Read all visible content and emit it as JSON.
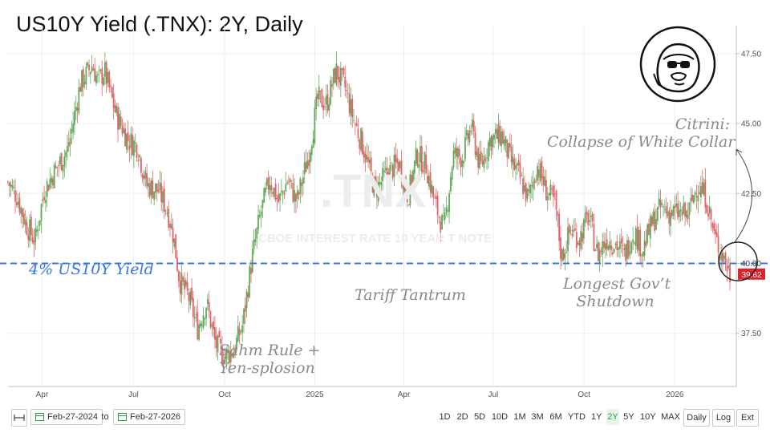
{
  "title": "US10Y Yield (.TNX): 2Y, Daily",
  "watermark": {
    "symbol": ".TNX",
    "name": "CBOE INTEREST RATE 10 YEAR T NOTE"
  },
  "annotations": {
    "citrini_line1": "Citrini:",
    "citrini_line2": "Collapse of White Collar",
    "four_pct": "4% US10Y Yield",
    "tariff": "Tariff Tantrum",
    "shutdown_line1": "Longest Gov’t",
    "shutdown_line2": "Shutdown",
    "sahm_line1": "Sahm Rule +",
    "sahm_line2": "Yen-splosion"
  },
  "price_label": "39.62",
  "toolbar": {
    "from_date": "Feb-27-2024",
    "to_label": "to",
    "to_date": "Feb-27-2026",
    "ranges": [
      "1D",
      "2D",
      "5D",
      "10D",
      "1M",
      "3M",
      "6M",
      "YTD",
      "1Y",
      "2Y",
      "5Y",
      "10Y",
      "MAX"
    ],
    "active_range": "2Y",
    "interval": "Daily",
    "scale": "Log",
    "ext": "Ext"
  },
  "colors": {
    "up": "#62a95b",
    "down": "#e0646a",
    "reference_line": "#3a78d8",
    "price_badge": "#d9232d",
    "annotation": "#8a8a8a"
  },
  "chart_data": {
    "type": "candlestick",
    "title": "US10Y Yield (.TNX): 2Y, Daily",
    "x_tick_labels": [
      "Apr",
      "Jul",
      "Oct",
      "2025",
      "Apr",
      "Jul",
      "Oct",
      "2026"
    ],
    "y_ticks": [
      37.5,
      40.0,
      42.5,
      45.0,
      47.5
    ],
    "y_tick_labels": [
      "37.50",
      "40.00",
      "42.50",
      "45.00",
      "47.50"
    ],
    "ylim": [
      35.6,
      48.5
    ],
    "reference_line": {
      "value": 40.0,
      "label": "4% US10Y Yield",
      "style": "dashed"
    },
    "last_value": 39.62,
    "grid": true,
    "path_months_from_start": [
      0,
      0.3,
      0.6,
      0.9,
      1.2,
      1.6,
      2.0,
      2.4,
      2.8,
      3.0,
      3.2,
      3.6,
      4.0,
      4.3,
      4.6,
      5.0,
      5.3,
      5.5,
      5.7,
      6.0,
      6.3,
      6.6,
      6.9,
      7.2,
      7.5,
      7.8,
      8.1,
      8.4,
      8.7,
      9.0,
      9.3,
      9.6,
      10.0,
      10.3,
      10.6,
      10.9,
      11.2,
      11.5,
      11.8,
      12.2,
      12.6,
      13.0,
      13.3,
      13.6,
      13.9,
      14.2,
      14.5,
      14.8,
      15.1,
      15.4,
      15.7,
      16.0,
      16.4,
      16.7,
      17.0,
      17.3,
      17.6,
      17.9,
      18.2,
      18.4,
      18.7,
      19.0,
      19.3,
      19.6,
      19.9,
      20.2,
      20.5,
      20.8,
      21.1,
      21.4,
      21.7,
      22.0,
      22.3,
      22.6,
      22.9,
      23.2,
      23.5,
      23.8,
      24.0
    ],
    "path_values": [
      42.9,
      42.4,
      41.4,
      40.8,
      42.6,
      43.4,
      44.1,
      46.4,
      47.1,
      46.5,
      46.9,
      45.3,
      44.4,
      44.2,
      42.8,
      42.6,
      41.9,
      41.0,
      39.4,
      38.8,
      37.7,
      38.6,
      37.1,
      36.7,
      36.9,
      37.8,
      40.1,
      41.8,
      43.0,
      42.2,
      43.0,
      42.2,
      43.9,
      45.9,
      45.7,
      46.9,
      46.3,
      45.1,
      44.2,
      42.6,
      43.2,
      43.6,
      42.4,
      43.9,
      43.5,
      42.1,
      41.2,
      43.9,
      43.8,
      44.9,
      43.4,
      44.4,
      44.6,
      43.7,
      43.1,
      42.3,
      43.5,
      42.6,
      42.1,
      40.2,
      41.2,
      40.9,
      41.7,
      40.3,
      40.9,
      40.7,
      40.3,
      41.2,
      40.5,
      41.4,
      42.0,
      41.8,
      41.8,
      41.7,
      42.8,
      42.4,
      40.9,
      40.2,
      39.6
    ]
  }
}
